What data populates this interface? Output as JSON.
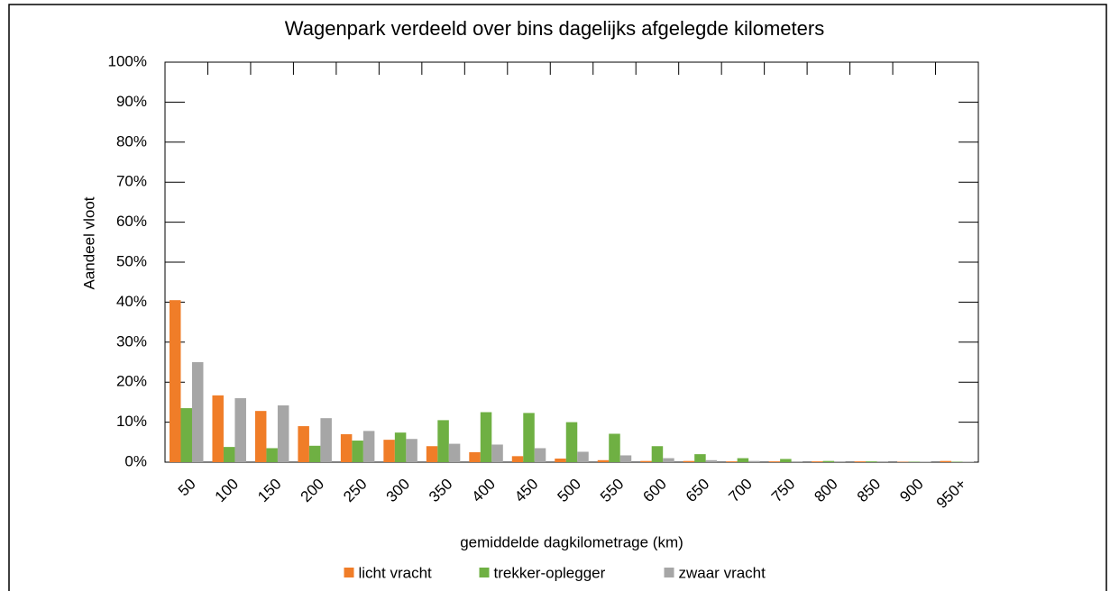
{
  "chart_data": {
    "type": "bar",
    "title": "Wagenpark verdeeld over bins dagelijks afgelegde kilometers",
    "x_label": "gemiddelde dagkilometrage (km)",
    "y_label": "Aandeel vloot",
    "categories": [
      "50",
      "100",
      "150",
      "200",
      "250",
      "300",
      "350",
      "400",
      "450",
      "500",
      "550",
      "600",
      "650",
      "700",
      "750",
      "800",
      "850",
      "900",
      "950+"
    ],
    "series": [
      {
        "name": "licht vracht",
        "color": "#f07d28",
        "values": [
          40.5,
          16.7,
          12.8,
          9,
          7,
          5.6,
          4,
          2.5,
          1.5,
          0.9,
          0.5,
          0.3,
          0.3,
          0.2,
          0.2,
          0.2,
          0.2,
          0.1,
          0.3
        ]
      },
      {
        "name": "trekker-oplegger",
        "color": "#6fb043",
        "values": [
          13.5,
          3.8,
          3.5,
          4.1,
          5.4,
          7.4,
          10.5,
          12.5,
          12.3,
          10,
          7.1,
          4,
          2,
          1,
          0.8,
          0.3,
          0.2,
          0.1,
          0.1
        ]
      },
      {
        "name": "zwaar vracht",
        "color": "#a6a6a6",
        "values": [
          25,
          16,
          14.2,
          11,
          7.8,
          5.8,
          4.6,
          4.4,
          3.5,
          2.6,
          1.7,
          1,
          0.5,
          0.3,
          0.2,
          0.2,
          0.2,
          0.1,
          0.1
        ]
      }
    ],
    "ylim": [
      0,
      100
    ],
    "yticks": [
      {
        "value": 0,
        "label": "0%"
      },
      {
        "value": 10,
        "label": "10%"
      },
      {
        "value": 20,
        "label": "20%"
      },
      {
        "value": 30,
        "label": "30%"
      },
      {
        "value": 40,
        "label": "40%"
      },
      {
        "value": 50,
        "label": "50%"
      },
      {
        "value": 60,
        "label": "60%"
      },
      {
        "value": 70,
        "label": "70%"
      },
      {
        "value": 80,
        "label": "80%"
      },
      {
        "value": 90,
        "label": "90%"
      },
      {
        "value": 100,
        "label": "100%"
      }
    ],
    "legend": "bottom"
  }
}
